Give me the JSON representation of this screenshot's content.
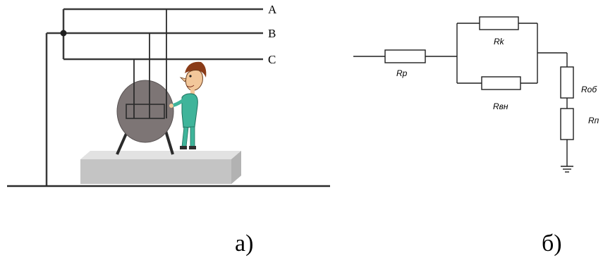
{
  "panel_a": {
    "caption": "а)",
    "lines": {
      "a": "A",
      "b": "B",
      "c": "C"
    }
  },
  "panel_b": {
    "caption": "б)",
    "resistors": {
      "rp": "Rp",
      "rk": "Rk",
      "rvn": "Rвн",
      "rob": "Roб",
      "rn": "Rп"
    }
  },
  "colors": {
    "wire": "#3a3a3a",
    "motor_body": "#7d7575",
    "platform_top": "#d8d8d8",
    "platform_front": "#c4c4c4",
    "person_shirt": "#3fb49a",
    "person_skin": "#f2c79a",
    "person_hair": "#8a3b18"
  }
}
